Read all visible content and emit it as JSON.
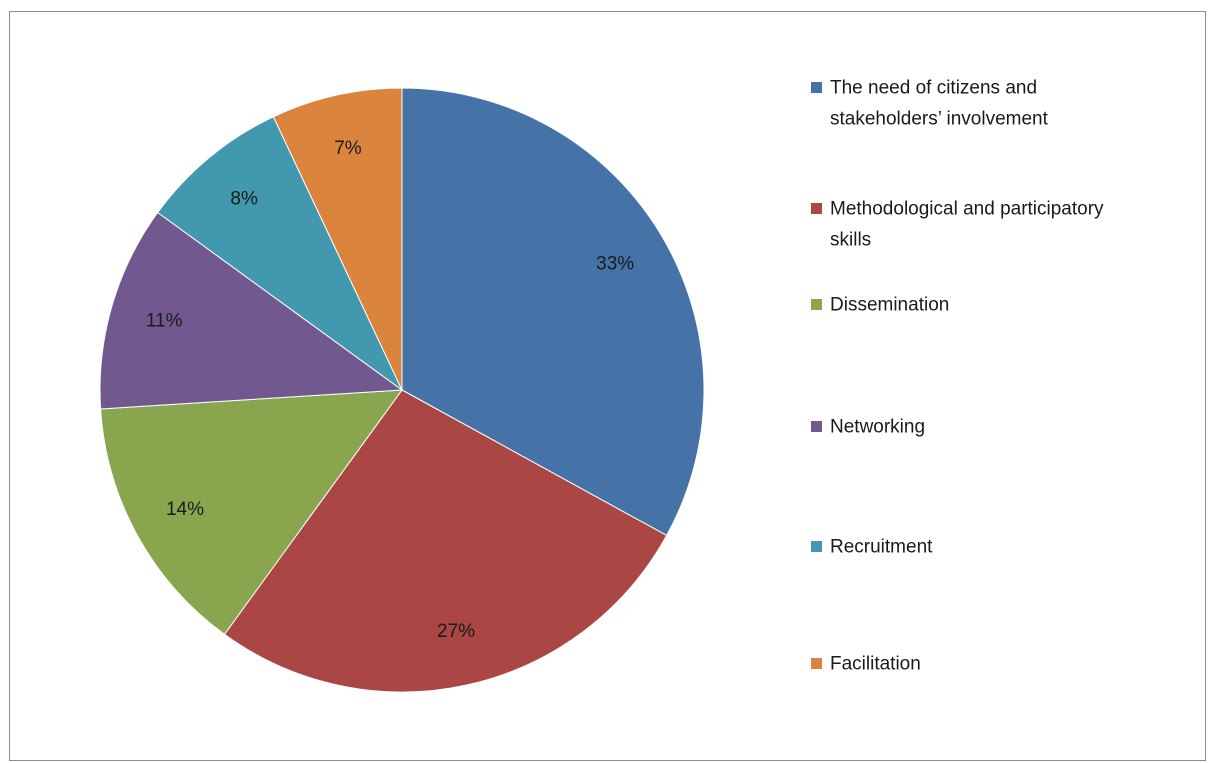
{
  "chart_data": {
    "type": "pie",
    "title": "",
    "categories": [
      "The need of citizens and stakeholders’ involvement",
      "Methodological and participatory skills",
      "Dissemination",
      "Networking",
      "Recruitment",
      "Facilitation"
    ],
    "values": [
      33,
      27,
      14,
      11,
      8,
      7
    ],
    "data_labels": [
      "33%",
      "27%",
      "14%",
      "11%",
      "8%",
      "7%"
    ],
    "legend": {
      "placement": "right",
      "entries": [
        {
          "label": [
            "The need of citizens and",
            "stakeholders’ involvement"
          ],
          "color": "#4572A7"
        },
        {
          "label": [
            "Methodological and participatory",
            "skills"
          ],
          "color": "#AA4643"
        },
        {
          "label": [
            "Dissemination"
          ],
          "color": "#89A54E"
        },
        {
          "label": [
            "Networking"
          ],
          "color": "#71588F"
        },
        {
          "label": [
            "Recruitment"
          ],
          "color": "#4198AF"
        },
        {
          "label": [
            "Facilitation"
          ],
          "color": "#DB843D"
        }
      ]
    },
    "colors": [
      "#4572A7",
      "#AA4643",
      "#89A54E",
      "#71588F",
      "#4198AF",
      "#DB843D"
    ],
    "start_angle": "12 o'clock",
    "direction": "clockwise"
  }
}
